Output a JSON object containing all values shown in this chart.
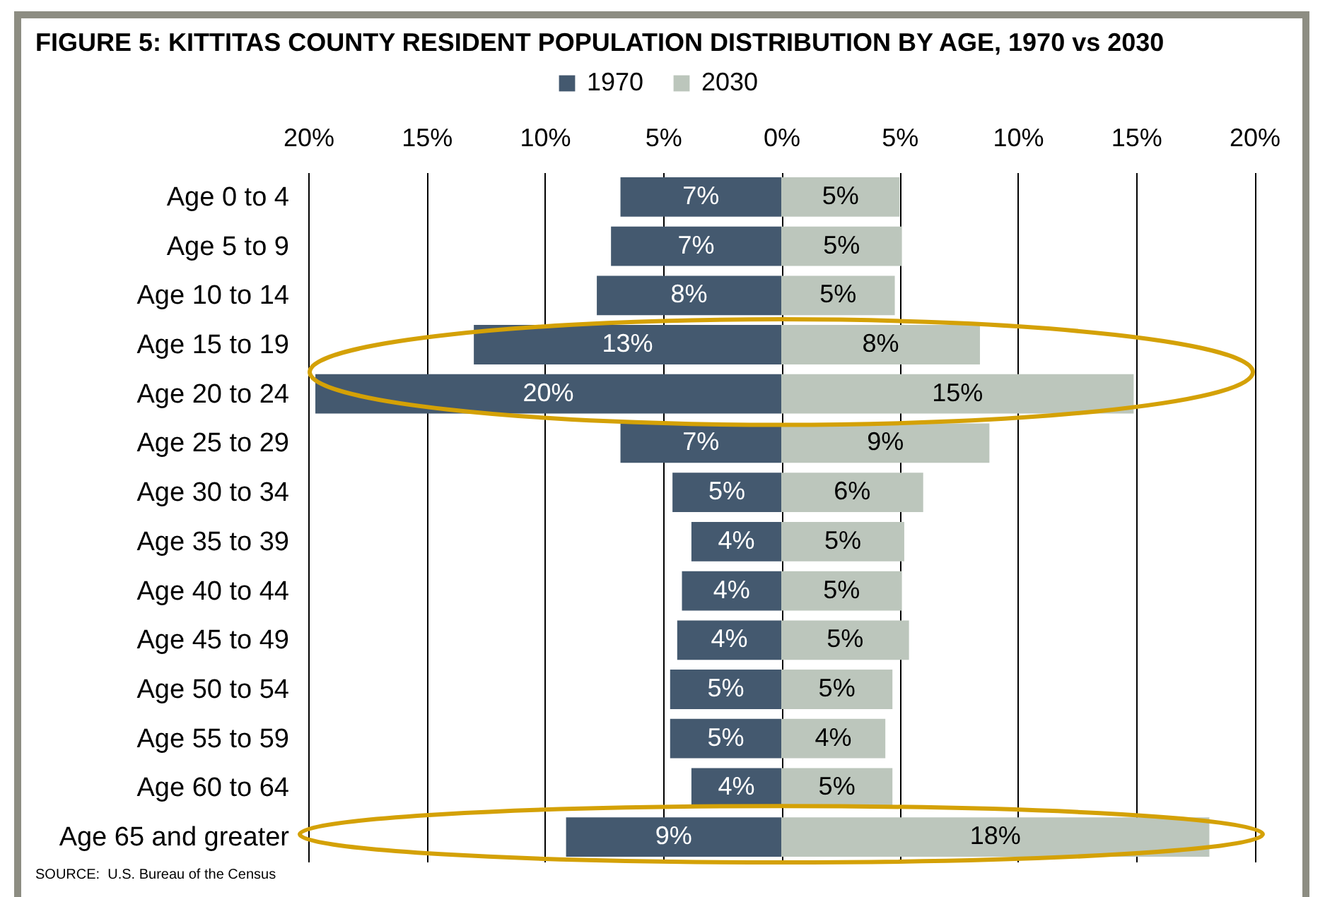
{
  "chart_data": [
    {
      "type": "bar",
      "orientation": "horizontal",
      "title": "FIGURE 5: KITTITAS COUNTY RESIDENT POPULATION DISTRIBUTION BY AGE, 1970 vs 2030",
      "categories": [
        "Age 0 to 4",
        "Age 5 to 9",
        "Age 10 to 14",
        "Age 15 to 19",
        "Age 20 to 24",
        "Age 25 to 29",
        "Age 30 to 34",
        "Age 35 to 39",
        "Age 40 to 44",
        "Age 45 to 49",
        "Age 50 to 54",
        "Age 55 to 59",
        "Age 60 to 64",
        "Age 65 and greater"
      ],
      "series": [
        {
          "name": "1970",
          "color": "#44596f",
          "values": [
            6.8,
            7.2,
            7.8,
            13.0,
            19.7,
            6.8,
            4.6,
            3.8,
            4.2,
            4.4,
            4.7,
            4.7,
            3.8,
            9.1
          ],
          "value_labels": [
            "7%",
            "7%",
            "8%",
            "13%",
            "20%",
            "7%",
            "5%",
            "4%",
            "4%",
            "4%",
            "5%",
            "5%",
            "4%",
            "9%"
          ]
        }
      ],
      "xlim": [
        20,
        0
      ],
      "xticks": [
        {
          "value": 20,
          "label": "20%"
        },
        {
          "value": 15,
          "label": "15%"
        },
        {
          "value": 10,
          "label": "10%"
        },
        {
          "value": 5,
          "label": "5%"
        },
        {
          "value": 0,
          "label": "0%"
        }
      ],
      "grid": "x",
      "legend": "top",
      "annotations": [
        "SOURCE:  U.S. Bureau of the Census"
      ]
    },
    {
      "type": "bar",
      "orientation": "horizontal",
      "categories": [
        null,
        null,
        null,
        null,
        null,
        null,
        null,
        null,
        null,
        null,
        null,
        null,
        null,
        null
      ],
      "series": [
        {
          "name": "2030",
          "color": "#bcc6bc",
          "values": [
            5.0,
            5.1,
            4.8,
            8.4,
            14.9,
            8.8,
            6.0,
            5.2,
            5.1,
            5.4,
            4.7,
            4.4,
            4.7,
            18.1
          ],
          "value_labels": [
            "5%",
            "5%",
            "5%",
            "8%",
            "15%",
            "9%",
            "6%",
            "5%",
            "5%",
            "5%",
            "5%",
            "4%",
            "5%",
            "18%"
          ]
        }
      ],
      "xlim": [
        0,
        20
      ],
      "xticks": [
        {
          "value": 5,
          "label": "5%"
        },
        {
          "value": 10,
          "label": "10%"
        },
        {
          "value": 15,
          "label": "15%"
        },
        {
          "value": 20,
          "label": "20%"
        }
      ],
      "grid": "x",
      "legend": "top"
    }
  ]
}
